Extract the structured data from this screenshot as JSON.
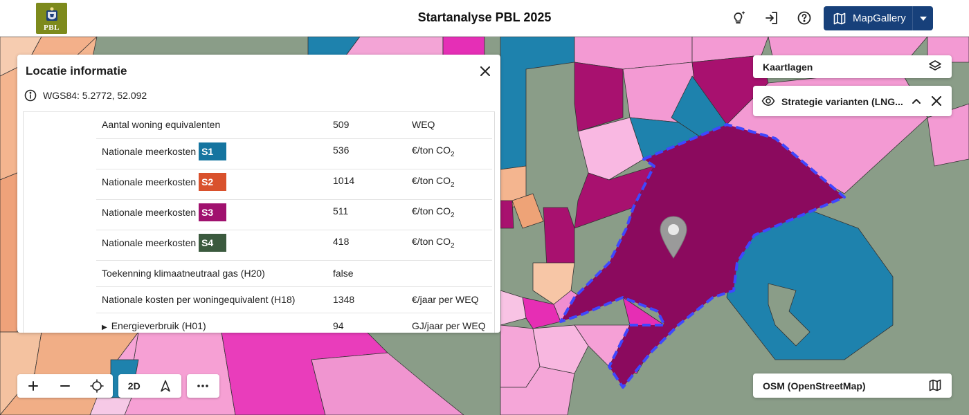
{
  "header": {
    "title": "Startanalyse PBL 2025",
    "logo_text": "PBL",
    "mapgallery_label": "MapGallery",
    "icons": [
      "lightbulb-icon",
      "login-icon",
      "help-icon",
      "map-icon",
      "caret-down-icon"
    ]
  },
  "location_panel": {
    "title": "Locatie informatie",
    "coordinates": "WGS84: 5.2772, 52.092",
    "rows": [
      {
        "name": "Aantal woning equivalenten",
        "value": "509",
        "unit": "WEQ"
      },
      {
        "name": "Nationale meerkosten",
        "badge": "S1",
        "badge_color": "#1575a0",
        "value": "536",
        "unit": "€/ton CO",
        "unit_sub": "2"
      },
      {
        "name": "Nationale meerkosten",
        "badge": "S2",
        "badge_color": "#d9512c",
        "value": "1014",
        "unit": "€/ton CO",
        "unit_sub": "2"
      },
      {
        "name": "Nationale meerkosten",
        "badge": "S3",
        "badge_color": "#a0116e",
        "value": "511",
        "unit": "€/ton CO",
        "unit_sub": "2"
      },
      {
        "name": "Nationale meerkosten",
        "badge": "S4",
        "badge_color": "#3b5a3e",
        "value": "418",
        "unit": "€/ton CO",
        "unit_sub": "2"
      },
      {
        "name": "Toekenning klimaatneutraal gas (H20)",
        "value": "false",
        "unit": ""
      },
      {
        "name": "Nationale kosten per woningequivalent (H18)",
        "value": "1348",
        "unit": "€/jaar per WEQ"
      },
      {
        "name": "Energieverbruik (H01)",
        "expand": "▶",
        "value": "94",
        "unit": "GJ/jaar per WEQ"
      }
    ]
  },
  "layers": {
    "kaartlagen_title": "Kaartlagen",
    "strategie_title": "Strategie varianten (LNG...",
    "basemap_title": "OSM (OpenStreetMap)"
  },
  "controls": {
    "zoom_in": "+",
    "zoom_out": "−",
    "mode_2d": "2D",
    "more": "···"
  },
  "colors": {
    "header_button": "#17407a",
    "map_base": "#8a9d88",
    "selected_area": "#8b0a5e",
    "selection_outline": "#3f47ff"
  }
}
